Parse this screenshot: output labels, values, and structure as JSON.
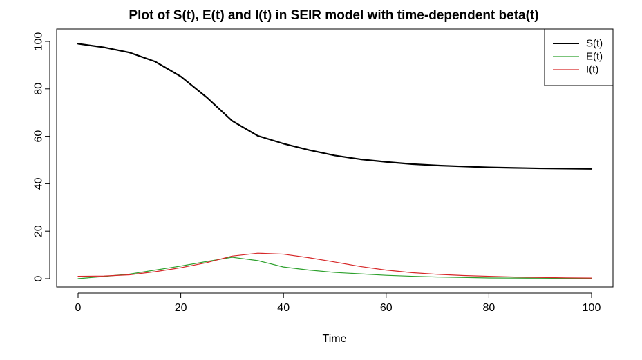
{
  "chart_data": {
    "type": "line",
    "title": "Plot of S(t), E(t) and I(t) in SEIR model with time-dependent beta(t)",
    "xlabel": "Time",
    "ylabel": "",
    "xlim": [
      0,
      100
    ],
    "ylim": [
      0,
      100
    ],
    "x_ticks": [
      0,
      20,
      40,
      60,
      80,
      100
    ],
    "y_ticks": [
      0,
      20,
      40,
      60,
      80,
      100
    ],
    "grid": false,
    "legend_position": "top-right",
    "x": [
      0,
      5,
      10,
      15,
      20,
      25,
      30,
      35,
      40,
      45,
      50,
      55,
      60,
      65,
      70,
      75,
      80,
      85,
      90,
      95,
      100
    ],
    "series": [
      {
        "name": "S(t)",
        "color": "#000000",
        "values": [
          99,
          97.5,
          95.3,
          91.5,
          85.2,
          76.5,
          66.5,
          60.2,
          56.9,
          54.2,
          51.9,
          50.3,
          49.2,
          48.3,
          47.7,
          47.3,
          46.9,
          46.7,
          46.5,
          46.4,
          46.3
        ]
      },
      {
        "name": "E(t)",
        "color": "#2ca02c",
        "values": [
          0,
          0.9,
          1.9,
          3.6,
          5.3,
          7.2,
          9.0,
          7.6,
          4.9,
          3.6,
          2.6,
          2.0,
          1.4,
          1.0,
          0.7,
          0.5,
          0.3,
          0.25,
          0.2,
          0.15,
          0.1
        ]
      },
      {
        "name": "I(t)",
        "color": "#d62728",
        "values": [
          1,
          1.1,
          1.6,
          2.9,
          4.6,
          6.7,
          9.5,
          10.7,
          10.3,
          8.8,
          7.0,
          5.1,
          3.6,
          2.5,
          1.8,
          1.3,
          1.0,
          0.7,
          0.5,
          0.35,
          0.25
        ]
      }
    ]
  }
}
